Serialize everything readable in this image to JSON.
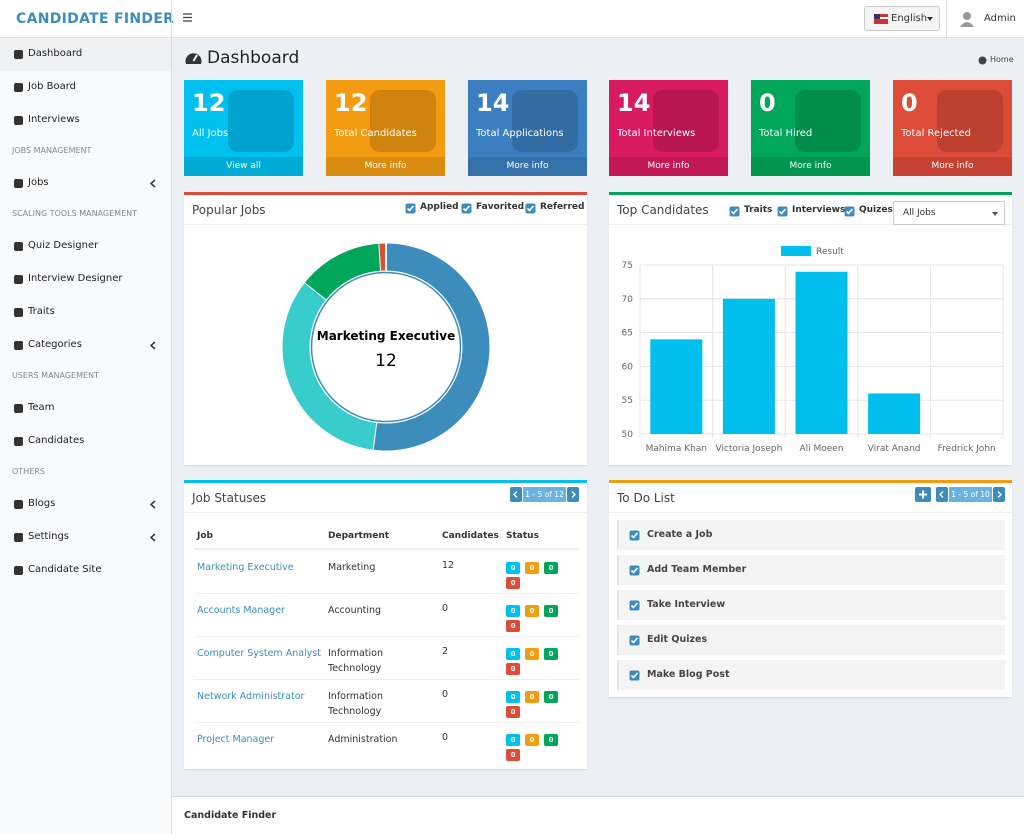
{
  "brand": "CANDIDATE FINDER",
  "topbar": {
    "language": "English",
    "user": "Admin"
  },
  "sidebar": [
    {
      "items": [
        {
          "label": "Dashboard",
          "active": true
        },
        {
          "label": "Job Board"
        },
        {
          "label": "Interviews"
        }
      ]
    },
    {
      "heading": "JOBS MANAGEMENT",
      "items": [
        {
          "label": "Jobs",
          "submenu": true
        }
      ]
    },
    {
      "heading": "SCALING TOOLS MANAGEMENT",
      "items": [
        {
          "label": "Quiz Designer"
        },
        {
          "label": "Interview Designer"
        },
        {
          "label": "Traits"
        },
        {
          "label": "Categories",
          "submenu": true
        }
      ]
    },
    {
      "heading": "USERS MANAGEMENT",
      "items": [
        {
          "label": "Team"
        },
        {
          "label": "Candidates"
        }
      ]
    },
    {
      "heading": "OTHERS",
      "items": [
        {
          "label": "Blogs",
          "submenu": true
        },
        {
          "label": "Settings",
          "submenu": true
        },
        {
          "label": "Candidate Site"
        }
      ]
    }
  ],
  "page": {
    "title": "Dashboard",
    "breadcrumb": "Home"
  },
  "stats": [
    {
      "value": 12,
      "label": "All Jobs",
      "link": "View all",
      "color": "#00c0ef"
    },
    {
      "value": 12,
      "label": "Total Candidates",
      "link": "More info",
      "color": "#f39c12"
    },
    {
      "value": 14,
      "label": "Total Applications",
      "link": "More info",
      "color": "#3c7fc0"
    },
    {
      "value": 14,
      "label": "Total Interviews",
      "link": "More info",
      "color": "#d81b60"
    },
    {
      "value": 0,
      "label": "Total Hired",
      "link": "More info",
      "color": "#00a65a"
    },
    {
      "value": 0,
      "label": "Total Rejected",
      "link": "More info",
      "color": "#dd4b39"
    }
  ],
  "popular_jobs": {
    "title": "Popular Jobs",
    "filters": [
      "Applied",
      "Favorited",
      "Referred"
    ]
  },
  "top_candidates": {
    "title": "Top Candidates",
    "filters": [
      "Traits",
      "Interviews",
      "Quizes"
    ],
    "select": "All Jobs"
  },
  "chart_data": [
    {
      "type": "pie",
      "hole": true,
      "center_label": "Marketing Executive",
      "center_value": 12,
      "categories": [
        null,
        null,
        null,
        null
      ],
      "values": [
        51,
        33,
        13,
        1
      ],
      "colors": [
        "#3c8dbc",
        "#39cccc",
        "#00a65a",
        "#dd4b39"
      ]
    },
    {
      "type": "bar",
      "categories": [
        "Mahima Khan",
        "Victoria Joseph",
        "Ali Moeen",
        "Virat Anand",
        "Fredrick John"
      ],
      "series": [
        {
          "name": "Result",
          "color": "#00bfef",
          "values": [
            64,
            70,
            74,
            56,
            50
          ]
        }
      ],
      "ylim": [
        50,
        75
      ],
      "yticks": [
        50,
        55,
        60,
        65,
        70,
        75
      ],
      "grid": true
    }
  ],
  "job_statuses": {
    "title": "Job Statuses",
    "pager": "1 - 5 of 12",
    "columns": [
      "Job",
      "Department",
      "Candidates",
      "Status"
    ],
    "rows": [
      {
        "job": "Marketing Executive",
        "department": "Marketing",
        "candidates": 12,
        "status": [
          0,
          0,
          0,
          0
        ]
      },
      {
        "job": "Accounts Manager",
        "department": "Accounting",
        "candidates": 0,
        "status": [
          0,
          0,
          0,
          0
        ]
      },
      {
        "job": "Computer System Analyst",
        "department": "Information Technology",
        "candidates": 2,
        "status": [
          0,
          0,
          0,
          0
        ]
      },
      {
        "job": "Network Administrator",
        "department": "Information Technology",
        "candidates": 0,
        "status": [
          0,
          0,
          0,
          0
        ]
      },
      {
        "job": "Project Manager",
        "department": "Administration",
        "candidates": 0,
        "status": [
          0,
          0,
          0,
          0
        ]
      }
    ]
  },
  "todo": {
    "title": "To Do List",
    "pager": "1 - 5 of 10",
    "items": [
      "Create a Job",
      "Add Team Member",
      "Take Interview",
      "Edit Quizes",
      "Make Blog Post"
    ]
  },
  "footer": "Candidate Finder"
}
